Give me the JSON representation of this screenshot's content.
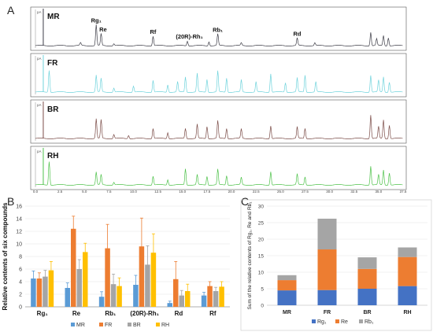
{
  "panels": {
    "a": "A",
    "b": "B",
    "c": "C"
  },
  "chart_data": [
    {
      "type": "line",
      "name": "chromatograms",
      "traces": [
        {
          "label": "MR",
          "color": "#3c3c46",
          "peaks": [
            {
              "t": 6.2,
              "h": 0.62
            },
            {
              "t": 6.7,
              "h": 0.35
            },
            {
              "t": 4.6,
              "h": 0.08
            },
            {
              "t": 8.0,
              "h": 0.06
            },
            {
              "t": 12.0,
              "h": 0.28
            },
            {
              "t": 15.5,
              "h": 0.14
            },
            {
              "t": 17.7,
              "h": 0.12
            },
            {
              "t": 18.6,
              "h": 0.34
            },
            {
              "t": 21.0,
              "h": 0.08
            },
            {
              "t": 26.7,
              "h": 0.22
            },
            {
              "t": 28.5,
              "h": 0.08
            },
            {
              "t": 34.2,
              "h": 0.4
            },
            {
              "t": 34.8,
              "h": 0.2
            },
            {
              "t": 35.5,
              "h": 0.3
            },
            {
              "t": 36.0,
              "h": 0.24
            }
          ],
          "annotations": [
            {
              "t": 6.2,
              "text": "Rg₁"
            },
            {
              "t": 6.9,
              "text": "Re"
            },
            {
              "t": 12.0,
              "text": "Rf"
            },
            {
              "t": 15.7,
              "text": "(20R)-Rh₁"
            },
            {
              "t": 18.6,
              "text": "Rb₁"
            },
            {
              "t": 26.7,
              "text": "Rd"
            }
          ]
        },
        {
          "label": "FR",
          "color": "#6fd3dc",
          "peaks": [
            {
              "t": 1.4,
              "h": 0.65
            },
            {
              "t": 6.2,
              "h": 0.5
            },
            {
              "t": 6.7,
              "h": 0.4
            },
            {
              "t": 8.0,
              "h": 0.12
            },
            {
              "t": 10.0,
              "h": 0.18
            },
            {
              "t": 12.0,
              "h": 0.35
            },
            {
              "t": 13.5,
              "h": 0.22
            },
            {
              "t": 14.5,
              "h": 0.3
            },
            {
              "t": 15.3,
              "h": 0.45
            },
            {
              "t": 16.5,
              "h": 0.55
            },
            {
              "t": 17.5,
              "h": 0.38
            },
            {
              "t": 18.6,
              "h": 0.62
            },
            {
              "t": 19.5,
              "h": 0.42
            },
            {
              "t": 21.0,
              "h": 0.36
            },
            {
              "t": 22.5,
              "h": 0.3
            },
            {
              "t": 24.0,
              "h": 0.55
            },
            {
              "t": 25.5,
              "h": 0.28
            },
            {
              "t": 26.7,
              "h": 0.42
            },
            {
              "t": 27.5,
              "h": 0.5
            },
            {
              "t": 28.6,
              "h": 0.3
            },
            {
              "t": 34.2,
              "h": 0.5
            },
            {
              "t": 35.0,
              "h": 0.35
            },
            {
              "t": 35.5,
              "h": 0.45
            },
            {
              "t": 36.1,
              "h": 0.3
            }
          ],
          "annotations": []
        },
        {
          "label": "BR",
          "color": "#7a4b46",
          "peaks": [
            {
              "t": 6.2,
              "h": 0.58
            },
            {
              "t": 6.7,
              "h": 0.55
            },
            {
              "t": 8.0,
              "h": 0.12
            },
            {
              "t": 9.5,
              "h": 0.1
            },
            {
              "t": 12.0,
              "h": 0.3
            },
            {
              "t": 13.5,
              "h": 0.18
            },
            {
              "t": 15.3,
              "h": 0.3
            },
            {
              "t": 16.5,
              "h": 0.42
            },
            {
              "t": 17.5,
              "h": 0.36
            },
            {
              "t": 18.6,
              "h": 0.52
            },
            {
              "t": 19.5,
              "h": 0.3
            },
            {
              "t": 21.0,
              "h": 0.28
            },
            {
              "t": 24.0,
              "h": 0.38
            },
            {
              "t": 26.7,
              "h": 0.34
            },
            {
              "t": 27.5,
              "h": 0.3
            },
            {
              "t": 34.2,
              "h": 0.7
            },
            {
              "t": 35.0,
              "h": 0.35
            },
            {
              "t": 35.5,
              "h": 0.55
            },
            {
              "t": 36.1,
              "h": 0.4
            }
          ],
          "annotations": []
        },
        {
          "label": "RH",
          "color": "#4ec24a",
          "peaks": [
            {
              "t": 1.4,
              "h": 0.7
            },
            {
              "t": 6.2,
              "h": 0.38
            },
            {
              "t": 6.7,
              "h": 0.3
            },
            {
              "t": 8.0,
              "h": 0.08
            },
            {
              "t": 12.0,
              "h": 0.26
            },
            {
              "t": 13.5,
              "h": 0.16
            },
            {
              "t": 15.3,
              "h": 0.48
            },
            {
              "t": 16.5,
              "h": 0.3
            },
            {
              "t": 17.5,
              "h": 0.26
            },
            {
              "t": 18.6,
              "h": 0.46
            },
            {
              "t": 19.5,
              "h": 0.28
            },
            {
              "t": 21.0,
              "h": 0.22
            },
            {
              "t": 24.0,
              "h": 0.4
            },
            {
              "t": 26.7,
              "h": 0.32
            },
            {
              "t": 27.5,
              "h": 0.24
            },
            {
              "t": 34.2,
              "h": 0.56
            },
            {
              "t": 35.0,
              "h": 0.3
            },
            {
              "t": 35.5,
              "h": 0.44
            },
            {
              "t": 36.1,
              "h": 0.36
            }
          ],
          "annotations": []
        }
      ],
      "x_ticks": [
        "0.0",
        "2.5",
        "5.0",
        "7.5",
        "10.0",
        "12.5",
        "15.0",
        "17.5",
        "20.0",
        "22.5",
        "25.0",
        "27.5",
        "30.0",
        "32.5",
        "35.0",
        "37.5"
      ],
      "xlim": [
        0,
        37.5
      ],
      "y_unit_label": "pA"
    },
    {
      "type": "bar",
      "name": "relative-contents",
      "ylabel": "Relative contents of six compounds",
      "categories": [
        "Rg₁",
        "Re",
        "Rb₁",
        "(20R)-Rh₁",
        "Rd",
        "Rf"
      ],
      "series": [
        {
          "name": "MR",
          "color": "#5b9bd5",
          "values": [
            4.5,
            3.0,
            1.6,
            3.5,
            0.6,
            1.8
          ],
          "errors": [
            1.2,
            0.8,
            0.8,
            1.5,
            0.3,
            0.5
          ]
        },
        {
          "name": "FR",
          "color": "#ed7d31",
          "values": [
            4.5,
            12.4,
            9.3,
            9.6,
            4.4,
            3.3
          ],
          "errors": [
            0.9,
            2.0,
            3.8,
            4.5,
            2.8,
            0.7
          ]
        },
        {
          "name": "BR",
          "color": "#a5a5a5",
          "values": [
            4.8,
            6.0,
            3.6,
            6.7,
            1.8,
            2.5
          ],
          "errors": [
            1.0,
            1.5,
            1.6,
            3.0,
            0.8,
            0.6
          ]
        },
        {
          "name": "RH",
          "color": "#ffc000",
          "values": [
            5.8,
            8.7,
            3.3,
            8.6,
            2.5,
            3.2
          ],
          "errors": [
            1.4,
            1.4,
            1.3,
            3.0,
            1.1,
            0.8
          ]
        }
      ],
      "ylim": [
        0,
        16
      ],
      "grid": true,
      "legend": "bottom"
    },
    {
      "type": "bar",
      "stacked": true,
      "name": "sum-relative-contents",
      "ylabel": "Sum of the relative contents of Rg₁, Re and Rb₁",
      "categories": [
        "MR",
        "FR",
        "BR",
        "RH"
      ],
      "series": [
        {
          "name": "Rg₁",
          "color": "#4472c4",
          "values": [
            4.5,
            4.6,
            5.0,
            5.8
          ]
        },
        {
          "name": "Re",
          "color": "#ed7d31",
          "values": [
            3.1,
            12.3,
            6.0,
            8.8
          ]
        },
        {
          "name": "Rb₁",
          "color": "#a5a5a5",
          "values": [
            1.5,
            9.3,
            3.5,
            2.9
          ]
        }
      ],
      "ylim": [
        0,
        30
      ],
      "grid": true,
      "legend": "bottom"
    }
  ]
}
